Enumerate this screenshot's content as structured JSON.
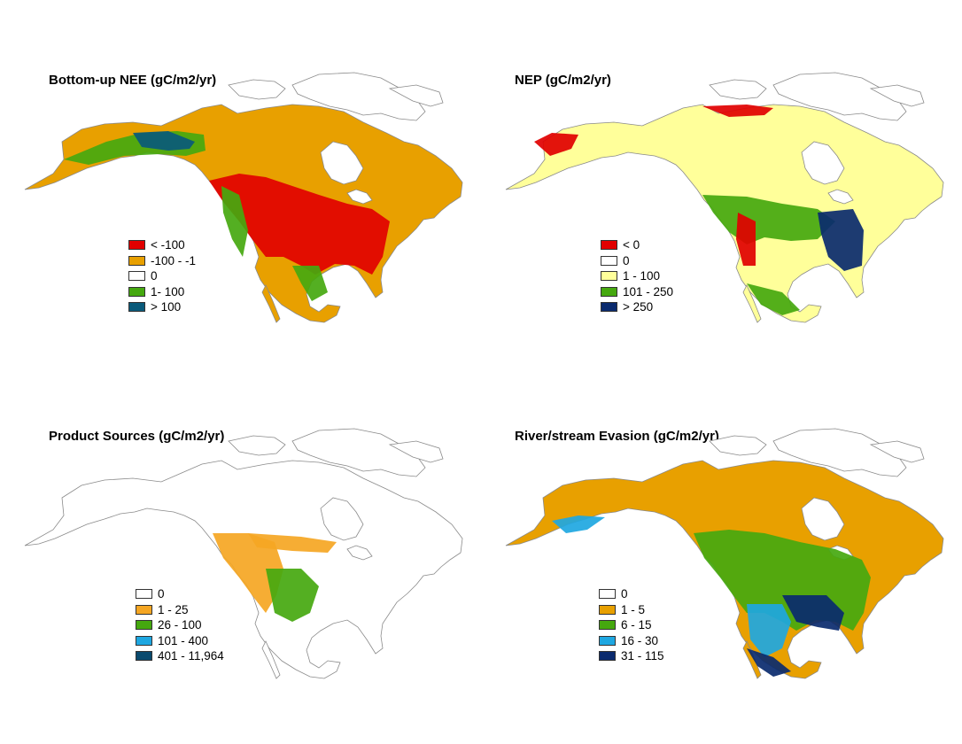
{
  "panels": [
    {
      "title": "Bottom-up NEE (gC/m2/yr)",
      "outline_fill": "#e8a000",
      "legend": [
        {
          "label": "< -100",
          "color": "#e10000"
        },
        {
          "label": "-100 - -1",
          "color": "#e8a000"
        },
        {
          "label": "0",
          "color": "#ffffff"
        },
        {
          "label": "1- 100",
          "color": "#45a80f"
        },
        {
          "label": "> 100",
          "color": "#0a5a7a"
        }
      ]
    },
    {
      "title": "NEP (gC/m2/yr)",
      "outline_fill": "#ffff9a",
      "legend": [
        {
          "label": "< 0",
          "color": "#e10000"
        },
        {
          "label": "0",
          "color": "#ffffff"
        },
        {
          "label": "1 - 100",
          "color": "#ffff9a"
        },
        {
          "label": "101 - 250",
          "color": "#45a80f"
        },
        {
          "label": "> 250",
          "color": "#0a2a6e"
        }
      ]
    },
    {
      "title": "Product Sources (gC/m2/yr)",
      "outline_fill": "#ffffff",
      "legend": [
        {
          "label": "0",
          "color": "#ffffff"
        },
        {
          "label": "1 - 25",
          "color": "#f5a623"
        },
        {
          "label": "26 - 100",
          "color": "#45a80f"
        },
        {
          "label": "101 - 400",
          "color": "#1ea7e1"
        },
        {
          "label": "401 - 11,964",
          "color": "#0a4a6e"
        }
      ]
    },
    {
      "title": "River/stream Evasion (gC/m2/yr)",
      "outline_fill": "#e8a000",
      "legend": [
        {
          "label": "0",
          "color": "#ffffff"
        },
        {
          "label": "1 - 5",
          "color": "#e8a000"
        },
        {
          "label": "6 - 15",
          "color": "#45a80f"
        },
        {
          "label": "16 - 30",
          "color": "#1ea7e1"
        },
        {
          "label": "31 - 115",
          "color": "#0a2a6e"
        }
      ]
    }
  ]
}
